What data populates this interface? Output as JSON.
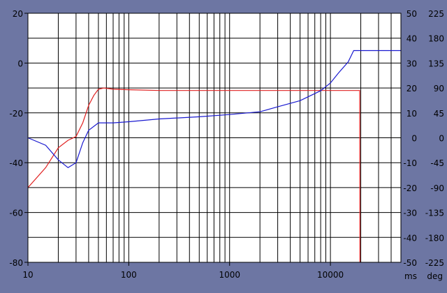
{
  "chart_data": {
    "type": "line",
    "x_scale": "log",
    "xlim": [
      10,
      50000
    ],
    "x_tick_labels": [
      "10",
      "100",
      "1000",
      "10000"
    ],
    "x_ticks": [
      10,
      100,
      1000,
      10000
    ],
    "y_left": {
      "lim": [
        -80,
        20
      ],
      "ticks": [
        20,
        0,
        -20,
        -40,
        -60,
        -80
      ]
    },
    "y_right_ms": {
      "lim": [
        -50,
        50
      ],
      "ticks": [
        50,
        40,
        30,
        20,
        10,
        0,
        -10,
        -20,
        -30,
        -40,
        -50
      ],
      "unit_label": "ms"
    },
    "y_right_deg": {
      "lim": [
        -225,
        225
      ],
      "ticks": [
        225,
        180,
        135,
        90,
        45,
        0,
        -45,
        -90,
        -135,
        -180,
        -225
      ],
      "unit_label": "deg"
    },
    "grid": true,
    "series": [
      {
        "axis": "left",
        "color": "#e02020",
        "points": [
          [
            10,
            -50
          ],
          [
            15,
            -42
          ],
          [
            20,
            -34
          ],
          [
            25,
            -31
          ],
          [
            30,
            -29.5
          ],
          [
            35,
            -24
          ],
          [
            40,
            -17
          ],
          [
            45,
            -13
          ],
          [
            50,
            -10.5
          ],
          [
            57,
            -10
          ],
          [
            70,
            -10.5
          ],
          [
            100,
            -10.7
          ],
          [
            200,
            -11
          ],
          [
            500,
            -11
          ],
          [
            1000,
            -11
          ],
          [
            5000,
            -11
          ],
          [
            10000,
            -11
          ],
          [
            19500,
            -11
          ],
          [
            19600,
            -80
          ]
        ]
      },
      {
        "axis": "deg",
        "color": "#1a1ad0",
        "points": [
          [
            10,
            0
          ],
          [
            15,
            -13.5
          ],
          [
            20,
            -40
          ],
          [
            25,
            -54
          ],
          [
            30,
            -45
          ],
          [
            35,
            -9
          ],
          [
            40,
            13.5
          ],
          [
            50,
            27
          ],
          [
            70,
            27
          ],
          [
            100,
            29
          ],
          [
            200,
            34
          ],
          [
            500,
            38
          ],
          [
            1000,
            42
          ],
          [
            2000,
            47
          ],
          [
            3000,
            56
          ],
          [
            5000,
            67
          ],
          [
            8000,
            85
          ],
          [
            10000,
            99
          ],
          [
            12000,
            117
          ],
          [
            15000,
            137
          ],
          [
            17000,
            157.5
          ],
          [
            50000,
            157.5
          ]
        ]
      }
    ]
  }
}
